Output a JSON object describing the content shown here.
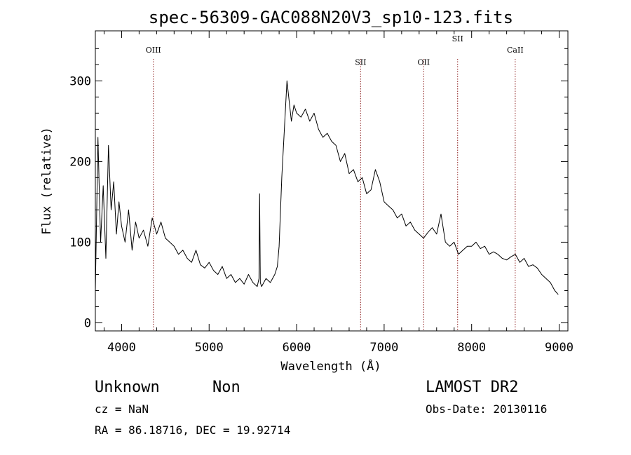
{
  "chart_data": {
    "type": "line",
    "title": "spec-56309-GAC088N20V3_sp10-123.fits",
    "xlabel": "Wavelength (Å)",
    "ylabel": "Flux (relative)",
    "xlim": [
      3700,
      9100
    ],
    "ylim": [
      -10,
      362
    ],
    "x_ticks": [
      4000,
      5000,
      6000,
      7000,
      8000,
      9000
    ],
    "x_tick_labels": [
      "4000",
      "5000",
      "6000",
      "7000",
      "8000",
      "9000"
    ],
    "y_ticks": [
      0,
      100,
      200,
      300
    ],
    "y_tick_labels": [
      "0",
      "100",
      "200",
      "300"
    ],
    "grid": false,
    "line_color": "#000000",
    "marker_color": "#8b1a1a",
    "series": [
      {
        "x": [
          3700,
          3730,
          3760,
          3790,
          3820,
          3850,
          3880,
          3910,
          3940,
          3970,
          4000,
          4040,
          4080,
          4120,
          4160,
          4200,
          4250,
          4300,
          4350,
          4400,
          4450,
          4500,
          4550,
          4600,
          4650,
          4700,
          4750,
          4800,
          4850,
          4900,
          4950,
          5000,
          5050,
          5100,
          5150,
          5200,
          5250,
          5300,
          5350,
          5400,
          5450,
          5500,
          5550,
          5570,
          5577,
          5585,
          5600,
          5650,
          5700,
          5750,
          5780,
          5800,
          5830,
          5860,
          5890,
          5910,
          5940,
          5970,
          6000,
          6050,
          6100,
          6150,
          6200,
          6250,
          6300,
          6350,
          6400,
          6450,
          6500,
          6550,
          6600,
          6650,
          6700,
          6750,
          6800,
          6850,
          6900,
          6950,
          7000,
          7050,
          7100,
          7150,
          7200,
          7250,
          7300,
          7350,
          7400,
          7450,
          7500,
          7550,
          7600,
          7650,
          7700,
          7750,
          7800,
          7850,
          7900,
          7950,
          8000,
          8050,
          8100,
          8150,
          8200,
          8250,
          8300,
          8350,
          8400,
          8450,
          8500,
          8550,
          8600,
          8650,
          8700,
          8750,
          8800,
          8850,
          8900,
          8950,
          8990
        ],
        "y": [
          40,
          230,
          100,
          170,
          80,
          220,
          140,
          175,
          110,
          150,
          120,
          100,
          140,
          90,
          125,
          105,
          115,
          95,
          130,
          110,
          125,
          105,
          100,
          95,
          85,
          90,
          80,
          75,
          90,
          72,
          68,
          75,
          65,
          60,
          70,
          55,
          60,
          50,
          55,
          48,
          60,
          50,
          45,
          55,
          160,
          50,
          45,
          55,
          50,
          60,
          70,
          95,
          180,
          240,
          300,
          280,
          250,
          270,
          260,
          255,
          265,
          250,
          260,
          240,
          230,
          235,
          225,
          220,
          200,
          210,
          185,
          190,
          175,
          180,
          160,
          165,
          190,
          175,
          150,
          145,
          140,
          130,
          135,
          120,
          125,
          115,
          110,
          105,
          112,
          118,
          110,
          135,
          100,
          95,
          100,
          85,
          90,
          95,
          95,
          100,
          92,
          95,
          85,
          88,
          85,
          80,
          78,
          82,
          85,
          75,
          80,
          70,
          72,
          68,
          60,
          55,
          50,
          40,
          35
        ]
      }
    ],
    "lines": [
      {
        "label": "OIII",
        "x": 4363,
        "label_y": 335
      },
      {
        "label": "SII",
        "x": 6731,
        "label_y": 320
      },
      {
        "label": "OII",
        "x": 7452,
        "label_y": 320
      },
      {
        "label": "SII",
        "x": 7840,
        "label_y": 349
      },
      {
        "label": "CaII",
        "x": 8498,
        "label_y": 335
      }
    ]
  },
  "info": {
    "class": "Unknown",
    "subclass": "Non",
    "cz": "cz = NaN",
    "radec": "RA =  86.18716, DEC =  19.92714",
    "survey": "LAMOST DR2",
    "obsdate": "Obs-Date: 20130116"
  }
}
